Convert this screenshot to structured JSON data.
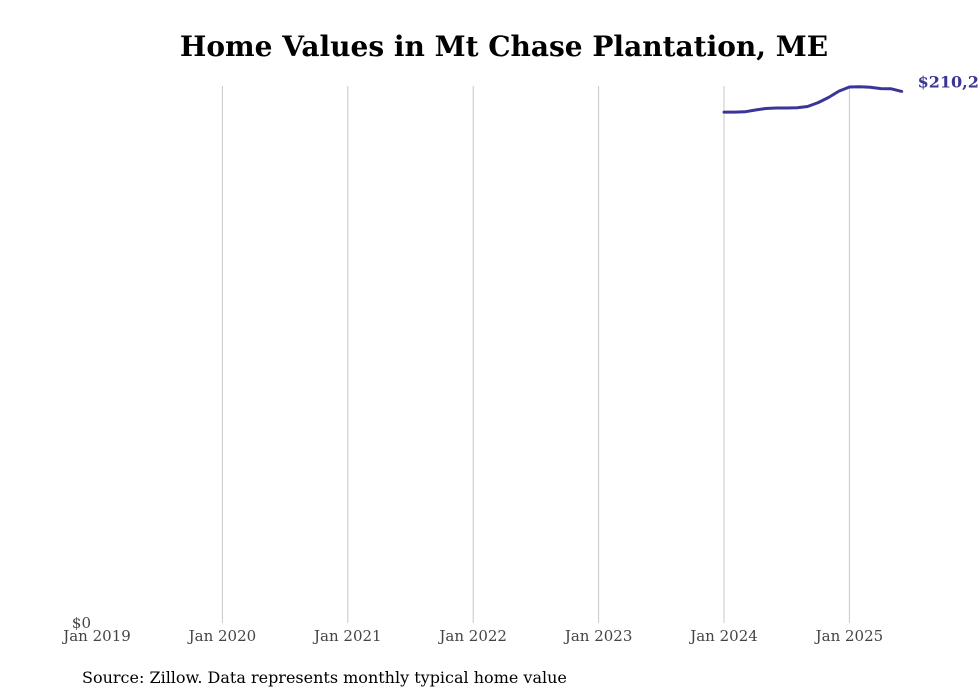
{
  "chart_data": {
    "type": "line",
    "title": "Home Values in Mt Chase Plantation, ME",
    "xlabel": "",
    "ylabel": "",
    "x_ticks": [
      "Jan 2019",
      "Jan 2020",
      "Jan 2021",
      "Jan 2022",
      "Jan 2023",
      "Jan 2024",
      "Jan 2025"
    ],
    "y_ticks": [
      "$0"
    ],
    "ylim": [
      0,
      210000
    ],
    "xlim": [
      "2019-01",
      "2025-08"
    ],
    "grid": {
      "vertical": true,
      "horizontal": false
    },
    "series": [
      {
        "x": [
          "2024-01",
          "2024-02",
          "2024-03",
          "2024-04",
          "2024-05",
          "2024-06",
          "2024-07",
          "2024-08",
          "2024-09",
          "2024-10",
          "2024-11",
          "2024-12",
          "2025-01",
          "2025-02",
          "2025-03",
          "2025-04",
          "2025-05",
          "2025-06"
        ],
        "values": [
          199800,
          199800,
          199900,
          200600,
          201200,
          201400,
          201400,
          201500,
          202000,
          203500,
          205500,
          208000,
          209600,
          209700,
          209500,
          209000,
          208900,
          207900
        ],
        "end_label": "$210,2"
      }
    ]
  },
  "source": "Source: Zillow. Data represents monthly typical home value",
  "colors": {
    "line": "#3a3596",
    "grid": "#c8c8c8",
    "axis_text": "#444444",
    "title": "#000000"
  }
}
